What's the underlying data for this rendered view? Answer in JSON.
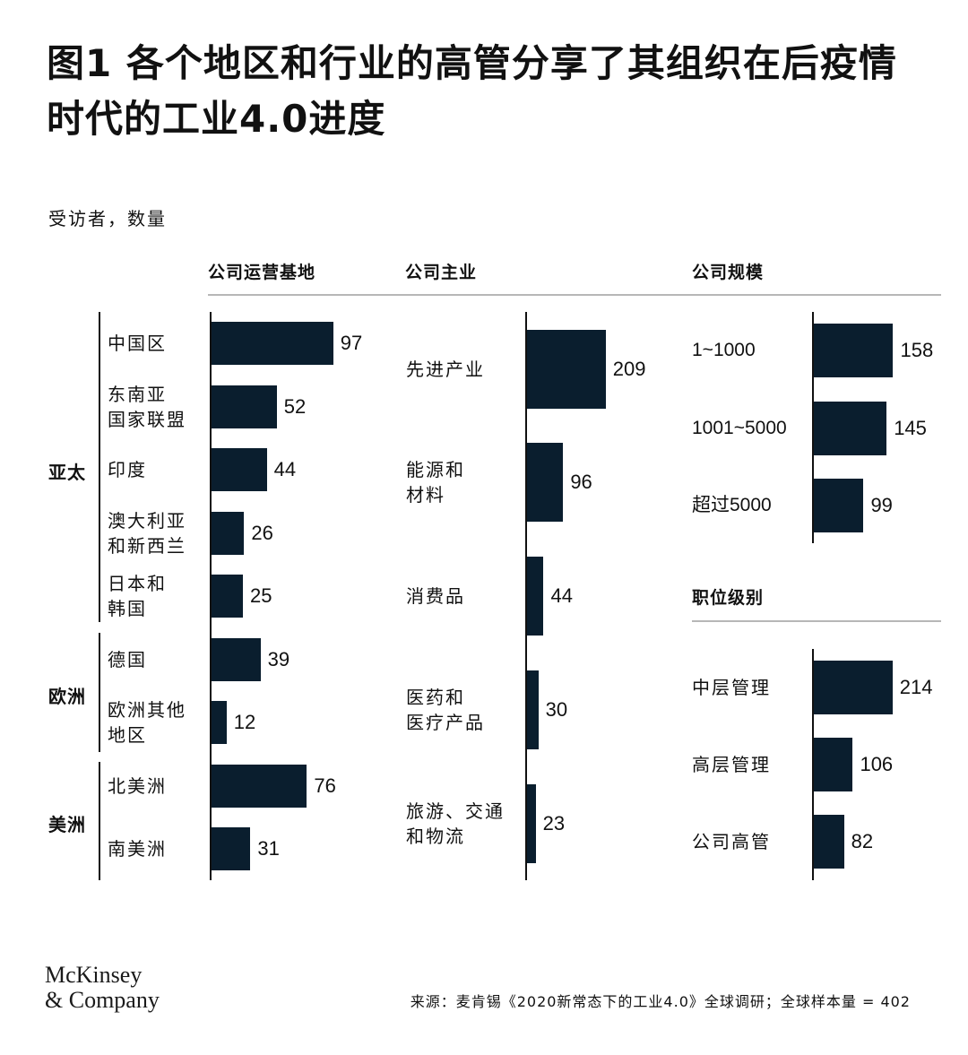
{
  "title": "图1 各个地区和行业的高管分享了其组织在后疫情时代的工业4.0进度",
  "subtitle": "受访者，数量",
  "chart_data": [
    {
      "type": "bar",
      "orientation": "horizontal",
      "title": "公司运营基地",
      "groups": [
        {
          "name": "亚太",
          "categories": [
            "中国区",
            "东南亚国家联盟",
            "印度",
            "澳大利亚和新西兰",
            "日本和韩国"
          ]
        },
        {
          "name": "欧洲",
          "categories": [
            "德国",
            "欧洲其他地区"
          ]
        },
        {
          "name": "美洲",
          "categories": [
            "北美洲",
            "南美洲"
          ]
        }
      ],
      "categories": [
        "中国区",
        "东南亚国家联盟",
        "印度",
        "澳大利亚和新西兰",
        "日本和韩国",
        "德国",
        "欧洲其他地区",
        "北美洲",
        "南美洲"
      ],
      "display_labels": [
        [
          "中国区"
        ],
        [
          "东南亚",
          "国家联盟"
        ],
        [
          "印度"
        ],
        [
          "澳大利亚",
          "和新西兰"
        ],
        [
          "日本和",
          "韩国"
        ],
        [
          "德国"
        ],
        [
          "欧洲其他",
          "地区"
        ],
        [
          "北美洲"
        ],
        [
          "南美洲"
        ]
      ],
      "values": [
        97,
        52,
        44,
        26,
        25,
        39,
        12,
        76,
        31
      ]
    },
    {
      "type": "bar",
      "orientation": "horizontal",
      "title": "公司主业",
      "categories": [
        "先进产业",
        "能源和材料",
        "消费品",
        "医药和医疗产品",
        "旅游、交通和物流"
      ],
      "display_labels": [
        [
          "先进产业"
        ],
        [
          "能源和",
          "材料"
        ],
        [
          "消费品"
        ],
        [
          "医药和",
          "医疗产品"
        ],
        [
          "旅游、交通",
          "和物流"
        ]
      ],
      "values": [
        209,
        96,
        44,
        30,
        23
      ]
    },
    {
      "type": "bar",
      "orientation": "horizontal",
      "title": "公司规模",
      "categories": [
        "1~1000",
        "1001~5000",
        "超过5000"
      ],
      "values": [
        158,
        145,
        99
      ]
    },
    {
      "type": "bar",
      "orientation": "horizontal",
      "title": "职位级别",
      "categories": [
        "中层管理",
        "高层管理",
        "公司高管"
      ],
      "values": [
        214,
        106,
        82
      ]
    }
  ],
  "footer": {
    "logo_line1": "McKinsey",
    "logo_line2": "& Company",
    "source": "来源：麦肯锡《2020新常态下的工业4.0》全球调研；全球样本量 = 402"
  }
}
